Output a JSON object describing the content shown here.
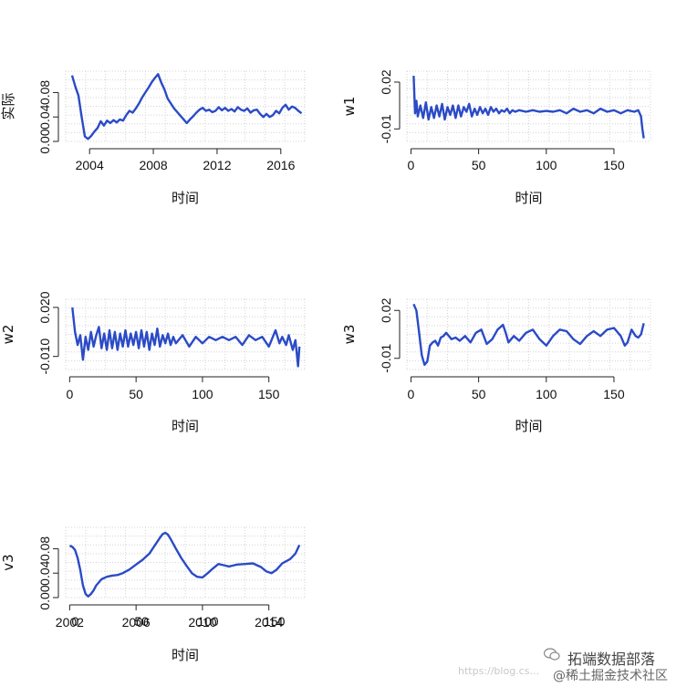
{
  "chart_data": [
    {
      "type": "line",
      "id": "actual",
      "ylabel": "实际",
      "xlabel": "时间",
      "xlim": [
        2002.5,
        2017.5
      ],
      "ylim": [
        0.0,
        0.115
      ],
      "xticks": [
        2004,
        2008,
        2012,
        2016
      ],
      "xticklabels": [
        "2004",
        "2008",
        "2012",
        "2016"
      ],
      "yticks": [
        0.0,
        0.04,
        0.08
      ],
      "yticklabels": [
        "0.00",
        "0.04",
        "0.08"
      ],
      "grid": true,
      "color": "#2b4bc6",
      "x": [
        2002.9,
        2003.1,
        2003.3,
        2003.5,
        2003.7,
        2003.9,
        2004.1,
        2004.3,
        2004.5,
        2004.7,
        2004.9,
        2005.1,
        2005.3,
        2005.5,
        2005.7,
        2005.9,
        2006.1,
        2006.3,
        2006.5,
        2006.7,
        2006.9,
        2007.1,
        2007.3,
        2007.5,
        2007.7,
        2007.9,
        2008.1,
        2008.3,
        2008.5,
        2008.7,
        2008.9,
        2009.1,
        2009.3,
        2009.5,
        2009.7,
        2009.9,
        2010.1,
        2010.3,
        2010.5,
        2010.7,
        2010.9,
        2011.1,
        2011.3,
        2011.5,
        2011.7,
        2011.9,
        2012.1,
        2012.3,
        2012.5,
        2012.7,
        2012.9,
        2013.1,
        2013.3,
        2013.5,
        2013.7,
        2013.9,
        2014.1,
        2014.3,
        2014.5,
        2014.7,
        2014.9,
        2015.1,
        2015.3,
        2015.5,
        2015.7,
        2015.9,
        2016.1,
        2016.3,
        2016.5,
        2016.7,
        2016.9,
        2017.1,
        2017.3
      ],
      "y": [
        0.108,
        0.09,
        0.075,
        0.04,
        0.008,
        0.004,
        0.009,
        0.016,
        0.022,
        0.033,
        0.026,
        0.034,
        0.03,
        0.035,
        0.031,
        0.036,
        0.034,
        0.043,
        0.05,
        0.047,
        0.054,
        0.062,
        0.072,
        0.08,
        0.088,
        0.097,
        0.104,
        0.11,
        0.096,
        0.085,
        0.07,
        0.062,
        0.054,
        0.048,
        0.042,
        0.036,
        0.03,
        0.036,
        0.041,
        0.047,
        0.052,
        0.055,
        0.05,
        0.052,
        0.048,
        0.05,
        0.056,
        0.051,
        0.055,
        0.05,
        0.053,
        0.049,
        0.056,
        0.052,
        0.05,
        0.054,
        0.047,
        0.051,
        0.052,
        0.045,
        0.04,
        0.045,
        0.04,
        0.043,
        0.05,
        0.046,
        0.055,
        0.06,
        0.052,
        0.057,
        0.055,
        0.05,
        0.046
      ]
    },
    {
      "type": "line",
      "id": "w1",
      "ylabel": "w1",
      "xlabel": "时间",
      "xlim": [
        -3,
        177
      ],
      "ylim": [
        -0.018,
        0.027
      ],
      "xticks": [
        0,
        50,
        100,
        150
      ],
      "xticklabels": [
        "0",
        "50",
        "100",
        "150"
      ],
      "yticks": [
        -0.01,
        0.02
      ],
      "yticklabels": [
        "-0.01",
        "0.02"
      ],
      "grid": true,
      "color": "#2b4bc6",
      "x": [
        2,
        3,
        4,
        5,
        7,
        9,
        11,
        13,
        15,
        17,
        19,
        21,
        23,
        25,
        27,
        29,
        31,
        33,
        35,
        37,
        39,
        41,
        43,
        45,
        47,
        49,
        51,
        53,
        55,
        57,
        59,
        61,
        63,
        65,
        67,
        69,
        71,
        73,
        75,
        77,
        80,
        85,
        90,
        95,
        100,
        105,
        110,
        115,
        120,
        125,
        130,
        135,
        140,
        145,
        150,
        155,
        160,
        165,
        168,
        170,
        171,
        172
      ],
      "y": [
        0.024,
        0.0,
        0.008,
        -0.002,
        0.005,
        -0.003,
        0.007,
        -0.004,
        0.004,
        -0.003,
        0.005,
        -0.002,
        0.006,
        -0.004,
        0.004,
        -0.001,
        0.005,
        -0.003,
        0.005,
        -0.002,
        0.004,
        0.001,
        0.006,
        -0.002,
        0.003,
        -0.001,
        0.004,
        0.0,
        0.003,
        -0.001,
        0.004,
        0.001,
        0.003,
        0.0,
        0.002,
        0.001,
        0.003,
        0.0,
        0.002,
        0.001,
        0.002,
        0.001,
        0.002,
        0.001,
        0.0015,
        0.001,
        0.002,
        0.0,
        0.003,
        0.001,
        0.002,
        0.0,
        0.003,
        0.001,
        0.002,
        0.0,
        0.002,
        0.001,
        0.002,
        -0.002,
        -0.01,
        -0.016
      ]
    },
    {
      "type": "line",
      "id": "w2",
      "ylabel": "w2",
      "xlabel": "时间",
      "xlim": [
        -3,
        177
      ],
      "ylim": [
        -0.018,
        0.025
      ],
      "xticks": [
        0,
        50,
        100,
        150
      ],
      "xticklabels": [
        "0",
        "50",
        "100",
        "150"
      ],
      "yticks": [
        -0.01,
        0.02
      ],
      "yticklabels": [
        "-0.010",
        "0.020"
      ],
      "grid": true,
      "color": "#2b4bc6",
      "x": [
        2,
        4,
        6,
        8,
        10,
        12,
        14,
        16,
        18,
        20,
        22,
        24,
        26,
        28,
        30,
        32,
        34,
        36,
        38,
        40,
        42,
        44,
        46,
        48,
        50,
        52,
        54,
        56,
        58,
        60,
        62,
        64,
        66,
        68,
        70,
        72,
        74,
        76,
        78,
        80,
        85,
        90,
        95,
        100,
        105,
        110,
        115,
        120,
        125,
        130,
        135,
        140,
        145,
        150,
        155,
        158,
        160,
        163,
        165,
        168,
        170,
        172,
        173
      ],
      "y": [
        0.02,
        0.005,
        -0.003,
        0.003,
        -0.012,
        0.002,
        -0.006,
        0.005,
        -0.004,
        0.003,
        0.008,
        -0.005,
        0.004,
        -0.006,
        0.006,
        -0.005,
        0.005,
        -0.006,
        0.004,
        -0.004,
        0.006,
        -0.004,
        0.004,
        -0.003,
        0.005,
        -0.005,
        0.006,
        -0.004,
        0.005,
        -0.006,
        0.004,
        -0.003,
        0.007,
        -0.004,
        0.003,
        -0.002,
        0.004,
        -0.003,
        0.002,
        -0.002,
        0.003,
        -0.004,
        0.002,
        -0.002,
        0.002,
        0.0,
        0.002,
        0.0,
        0.002,
        -0.003,
        0.003,
        0.0,
        0.002,
        -0.004,
        0.006,
        -0.002,
        0.002,
        -0.003,
        0.003,
        -0.006,
        0.0,
        -0.016,
        -0.004
      ]
    },
    {
      "type": "line",
      "id": "w3",
      "ylabel": "w3",
      "xlabel": "时间",
      "xlim": [
        -3,
        177
      ],
      "ylim": [
        -0.017,
        0.027
      ],
      "xticks": [
        0,
        50,
        100,
        150
      ],
      "xticklabels": [
        "0",
        "50",
        "100",
        "150"
      ],
      "yticks": [
        -0.01,
        0.02
      ],
      "yticklabels": [
        "-0.01",
        "0.02"
      ],
      "grid": true,
      "color": "#2b4bc6",
      "x": [
        2,
        4,
        6,
        8,
        10,
        12,
        14,
        16,
        18,
        20,
        22,
        24,
        26,
        28,
        30,
        33,
        36,
        40,
        44,
        48,
        52,
        56,
        60,
        64,
        68,
        70,
        72,
        76,
        80,
        85,
        90,
        95,
        100,
        105,
        110,
        115,
        120,
        125,
        130,
        135,
        140,
        145,
        150,
        155,
        158,
        160,
        163,
        166,
        168,
        170,
        172
      ],
      "y": [
        0.024,
        0.02,
        0.006,
        -0.008,
        -0.014,
        -0.012,
        -0.002,
        0.0,
        0.001,
        -0.002,
        0.003,
        0.004,
        0.006,
        0.004,
        0.002,
        0.003,
        0.001,
        0.004,
        0.0,
        0.006,
        0.008,
        -0.001,
        0.002,
        0.008,
        0.011,
        0.006,
        0.0,
        0.004,
        0.001,
        0.006,
        0.008,
        0.002,
        -0.002,
        0.004,
        0.008,
        0.007,
        0.002,
        -0.001,
        0.004,
        0.007,
        0.004,
        0.008,
        0.009,
        0.004,
        -0.002,
        0.0,
        0.008,
        0.004,
        0.003,
        0.005,
        0.012
      ]
    },
    {
      "type": "line",
      "id": "v3",
      "ylabel": "v3",
      "xlabel": "时间",
      "xlim": [
        -3,
        177
      ],
      "ylim": [
        0.0,
        0.115
      ],
      "xticks": [
        0,
        50,
        100,
        150
      ],
      "xticklabels": [
        "2002",
        "2006",
        "2010",
        "2014"
      ],
      "xticklabels_overlay": [
        "0",
        "50",
        "100",
        "150"
      ],
      "yticks": [
        0.0,
        0.04,
        0.08
      ],
      "yticklabels": [
        "0.00",
        "0.04",
        "0.08"
      ],
      "grid": true,
      "color": "#2b4bc6",
      "x": [
        0,
        2,
        4,
        6,
        8,
        10,
        12,
        14,
        16,
        18,
        20,
        24,
        28,
        32,
        36,
        40,
        45,
        50,
        55,
        60,
        64,
        68,
        70,
        72,
        74,
        76,
        80,
        84,
        88,
        92,
        96,
        100,
        104,
        108,
        112,
        116,
        120,
        126,
        132,
        138,
        144,
        148,
        152,
        156,
        160,
        166,
        170,
        173
      ],
      "y": [
        0.085,
        0.083,
        0.078,
        0.065,
        0.045,
        0.02,
        0.006,
        0.002,
        0.006,
        0.012,
        0.02,
        0.03,
        0.034,
        0.036,
        0.037,
        0.04,
        0.046,
        0.054,
        0.062,
        0.072,
        0.085,
        0.098,
        0.104,
        0.106,
        0.103,
        0.096,
        0.08,
        0.065,
        0.052,
        0.04,
        0.034,
        0.033,
        0.04,
        0.048,
        0.055,
        0.053,
        0.051,
        0.054,
        0.055,
        0.056,
        0.05,
        0.043,
        0.04,
        0.046,
        0.056,
        0.063,
        0.072,
        0.086
      ]
    }
  ],
  "watermark": {
    "name": "拓端数据部落",
    "sub": "@稀土掘金技术社区",
    "url": "https://blog.cs..."
  }
}
